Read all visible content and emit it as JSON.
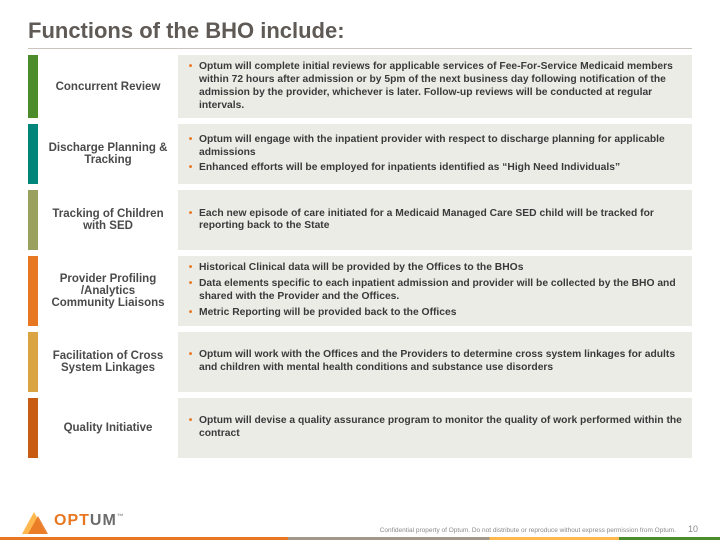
{
  "title": "Functions of the BHO include:",
  "accent_colors": [
    "#4c8c2b",
    "#00857a",
    "#9aa05e",
    "#e87722",
    "#d9a441",
    "#c75c12"
  ],
  "rows": [
    {
      "label": "Concurrent Review",
      "bullets": [
        "Optum will complete initial reviews for applicable services of Fee-For-Service Medicaid members within 72 hours after admission or by 5pm of the next business day following notification of the admission by the provider,  whichever is later.  Follow-up reviews will be conducted at regular intervals."
      ]
    },
    {
      "label": "Discharge Planning & Tracking",
      "bullets": [
        "Optum will engage with the inpatient provider with respect to discharge planning for applicable admissions",
        "Enhanced efforts will be employed for inpatients identified as “High Need Individuals”"
      ]
    },
    {
      "label": "Tracking of Children with SED",
      "bullets": [
        "Each new episode of care initiated for a Medicaid Managed Care SED child will be tracked for reporting back to the State"
      ]
    },
    {
      "label": "Provider Profiling /Analytics\nCommunity Liaisons",
      "bullets": [
        "Historical Clinical data will be provided by the Offices to the BHOs",
        "Data elements specific to each inpatient admission and provider will be collected by the BHO and shared with the Provider and the Offices.",
        "Metric Reporting will be provided back to the Offices"
      ]
    },
    {
      "label": "Facilitation of Cross System Linkages",
      "bullets": [
        "Optum will work with the Offices and the Providers to determine cross system linkages for adults and children with mental health conditions and substance use disorders"
      ]
    },
    {
      "label": "Quality Initiative",
      "bullets": [
        "Optum will devise a quality assurance program to monitor the quality of work performed within the contract"
      ]
    }
  ],
  "logo": {
    "text_a": "OPT",
    "text_b": "UM"
  },
  "confidential": "Confidential property of Optum. Do not distribute or reproduce without express permission from Optum.",
  "page_number": "10"
}
